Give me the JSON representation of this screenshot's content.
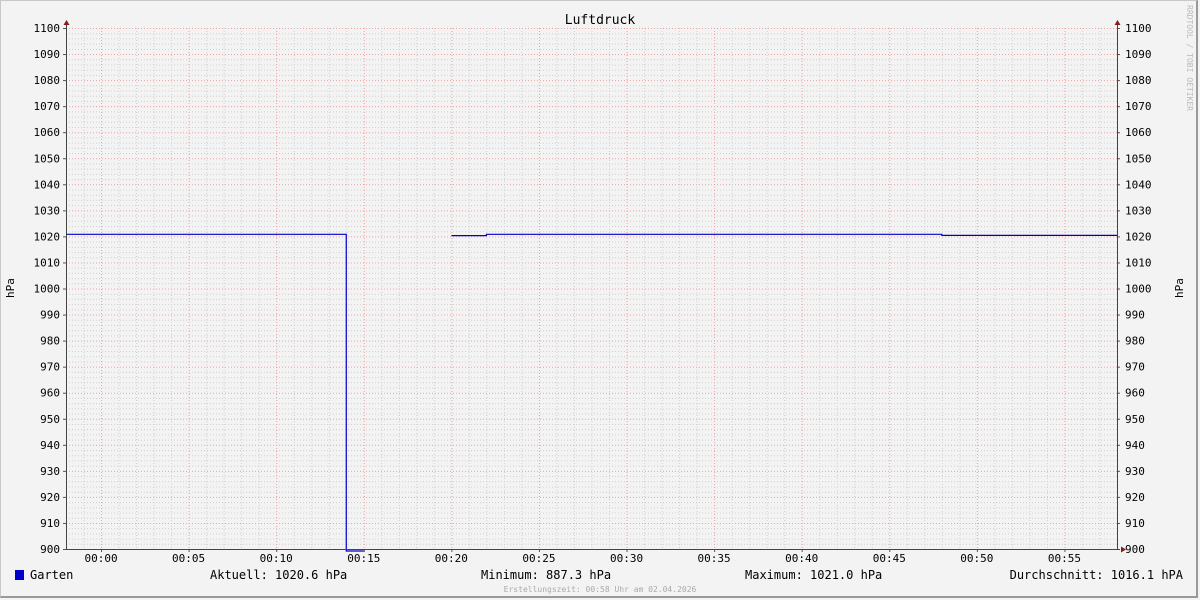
{
  "chart_data": {
    "type": "line",
    "title": "Luftdruck",
    "ylabel": "hPa",
    "ylim": [
      900,
      1100
    ],
    "yticks": [
      900,
      910,
      920,
      930,
      940,
      950,
      960,
      970,
      980,
      990,
      1000,
      1010,
      1020,
      1030,
      1040,
      1050,
      1060,
      1070,
      1080,
      1090,
      1100
    ],
    "xlim": [
      "23:58",
      "00:58"
    ],
    "xticks": [
      "00:00",
      "00:05",
      "00:10",
      "00:15",
      "00:20",
      "00:25",
      "00:30",
      "00:35",
      "00:40",
      "00:45",
      "00:50",
      "00:55"
    ],
    "grid": true,
    "watermark": "RRDTOOL / TOBI OETIKER",
    "series": [
      {
        "name": "Garten",
        "color": "#0000cc",
        "step_points": [
          {
            "t": "23:58",
            "v": 1020.8
          },
          {
            "t": "00:14",
            "v": 887.3
          },
          {
            "t": "00:15",
            "v": null
          },
          {
            "t": "00:20",
            "v": 1020.3
          },
          {
            "t": "00:22",
            "v": 1020.8
          },
          {
            "t": "00:48",
            "v": 1020.4
          },
          {
            "t": "00:58",
            "v": null
          }
        ]
      }
    ],
    "legend": {
      "name": "Garten",
      "current": "Aktuell: 1020.6 hPa",
      "minimum": "Minimum: 887.3 hPa",
      "maximum": "Maximum: 1021.0 hPa",
      "average": "Durchschnitt: 1016.1 hPA"
    },
    "footer": "Erstellungszeit: 00:58 Uhr am 02.04.2026"
  }
}
